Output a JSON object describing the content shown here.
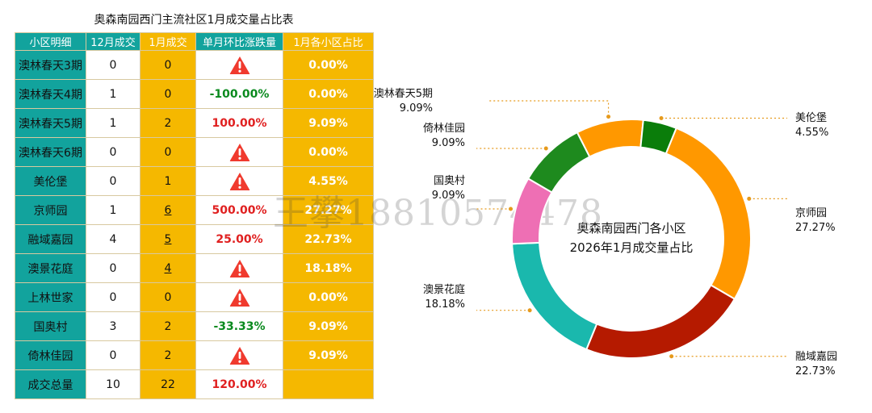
{
  "table": {
    "title": "奥森南园西门主流社区1月成交量占比表",
    "headers": [
      "小区明细",
      "12月成交",
      "1月成交",
      "单月环比涨跌量",
      "1月各小区占比"
    ],
    "rows": [
      {
        "name": "澳林春天3期",
        "dec": "0",
        "jan": "0",
        "change": "",
        "change_kind": "warn",
        "share": "0.00%",
        "share_kind": "white",
        "jan_hl": false
      },
      {
        "name": "澳林春天4期",
        "dec": "1",
        "jan": "0",
        "change": "-100.00%",
        "change_kind": "neg",
        "share": "0.00%",
        "share_kind": "red",
        "jan_hl": false
      },
      {
        "name": "澳林春天5期",
        "dec": "1",
        "jan": "2",
        "change": "100.00%",
        "change_kind": "pos",
        "share": "9.09%",
        "share_kind": "red",
        "jan_hl": false
      },
      {
        "name": "澳林春天6期",
        "dec": "0",
        "jan": "0",
        "change": "",
        "change_kind": "warn",
        "share": "0.00%",
        "share_kind": "white",
        "jan_hl": false
      },
      {
        "name": "美伦堡",
        "dec": "0",
        "jan": "1",
        "change": "",
        "change_kind": "warn",
        "share": "4.55%",
        "share_kind": "red",
        "jan_hl": false
      },
      {
        "name": "京师园",
        "dec": "1",
        "jan": "6",
        "change": "500.00%",
        "change_kind": "pos",
        "share": "27.27%",
        "share_kind": "red",
        "jan_hl": true
      },
      {
        "name": "融域嘉园",
        "dec": "4",
        "jan": "5",
        "change": "25.00%",
        "change_kind": "pos",
        "share": "22.73%",
        "share_kind": "red",
        "jan_hl": true
      },
      {
        "name": "澳景花庭",
        "dec": "0",
        "jan": "4",
        "change": "",
        "change_kind": "warn",
        "share": "18.18%",
        "share_kind": "red",
        "jan_hl": true
      },
      {
        "name": "上林世家",
        "dec": "0",
        "jan": "0",
        "change": "",
        "change_kind": "warn",
        "share": "0.00%",
        "share_kind": "white",
        "jan_hl": false
      },
      {
        "name": "国奥村",
        "dec": "3",
        "jan": "2",
        "change": "-33.33%",
        "change_kind": "neg",
        "share": "9.09%",
        "share_kind": "red",
        "jan_hl": false
      },
      {
        "name": "倚林佳园",
        "dec": "0",
        "jan": "2",
        "change": "",
        "change_kind": "warn",
        "share": "9.09%",
        "share_kind": "red",
        "jan_hl": false
      },
      {
        "name": "成交总量",
        "dec": "10",
        "jan": "22",
        "change": "120.00%",
        "change_kind": "pos",
        "share": "",
        "share_kind": "white",
        "jan_hl": false
      }
    ]
  },
  "watermark": "王攀18810574478",
  "chart_data": {
    "type": "pie",
    "donut": true,
    "title": "奥森南园西门各小区 2026年1月成交量占比",
    "center_lines": [
      "奥森南园西门各小区",
      "2026年1月成交量占比"
    ],
    "slices": [
      {
        "name": "澳林春天5期",
        "value": 9.09,
        "label": "9.09%",
        "color": "#ff9800"
      },
      {
        "name": "美伦堡",
        "value": 4.55,
        "label": "4.55%",
        "color": "#0a7d0a"
      },
      {
        "name": "京师园",
        "value": 27.27,
        "label": "27.27%",
        "color": "#ff9800"
      },
      {
        "name": "融域嘉园",
        "value": 22.73,
        "label": "22.73%",
        "color": "#b51a00"
      },
      {
        "name": "澳景花庭",
        "value": 18.18,
        "label": "18.18%",
        "color": "#1ab8ad"
      },
      {
        "name": "国奥村",
        "value": 9.09,
        "label": "9.09%",
        "color": "#ee6fb4"
      },
      {
        "name": "倚林佳园",
        "value": 9.09,
        "label": "9.09%",
        "color": "#1e8a1e"
      }
    ],
    "start_angle_deg": -27,
    "leader_color": "#e69a1c"
  },
  "icons": {
    "warning": "warning-triangle-icon"
  }
}
